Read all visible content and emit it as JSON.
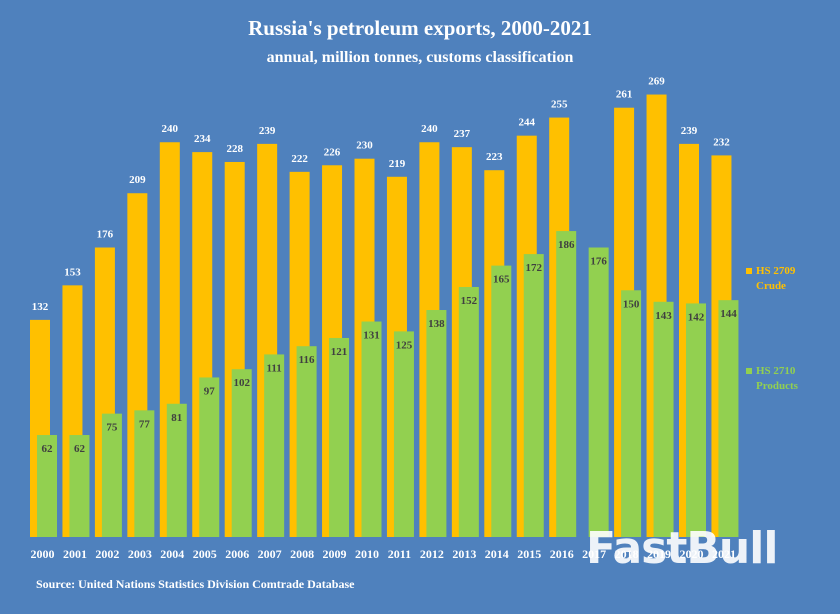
{
  "chart_data": {
    "type": "bar",
    "title": "Russia's petroleum exports, 2000-2021",
    "subtitle": "annual, million tonnes, customs classification",
    "source": "Source: United Nations Statistics Division Comtrade Database",
    "categories": [
      "2000",
      "2001",
      "2002",
      "2003",
      "2004",
      "2005",
      "2006",
      "2007",
      "2008",
      "2009",
      "2010",
      "2011",
      "2012",
      "2013",
      "2014",
      "2015",
      "2016",
      "2017",
      "2018",
      "2019",
      "2020",
      "2021"
    ],
    "series": [
      {
        "name": "HS 2709 Crude",
        "legend_line1": "HS 2709",
        "legend_line2": "Crude",
        "color": "#ffc000",
        "label_color": "#ffffff",
        "values": [
          132,
          153,
          176,
          209,
          240,
          234,
          228,
          239,
          222,
          226,
          230,
          219,
          240,
          237,
          223,
          244,
          255,
          null,
          261,
          269,
          239,
          232
        ]
      },
      {
        "name": "HS 2710 Products",
        "legend_line1": "HS 2710",
        "legend_line2": "Products",
        "color": "#92d050",
        "label_color": "#404040",
        "values": [
          62,
          62,
          75,
          77,
          81,
          97,
          102,
          111,
          116,
          121,
          131,
          125,
          138,
          152,
          165,
          172,
          186,
          176,
          150,
          143,
          142,
          144
        ]
      }
    ],
    "ylim": [
      0,
      290
    ],
    "legend_position": "right",
    "grid": false,
    "background": "#4f81bd",
    "watermark": "FastBull"
  }
}
